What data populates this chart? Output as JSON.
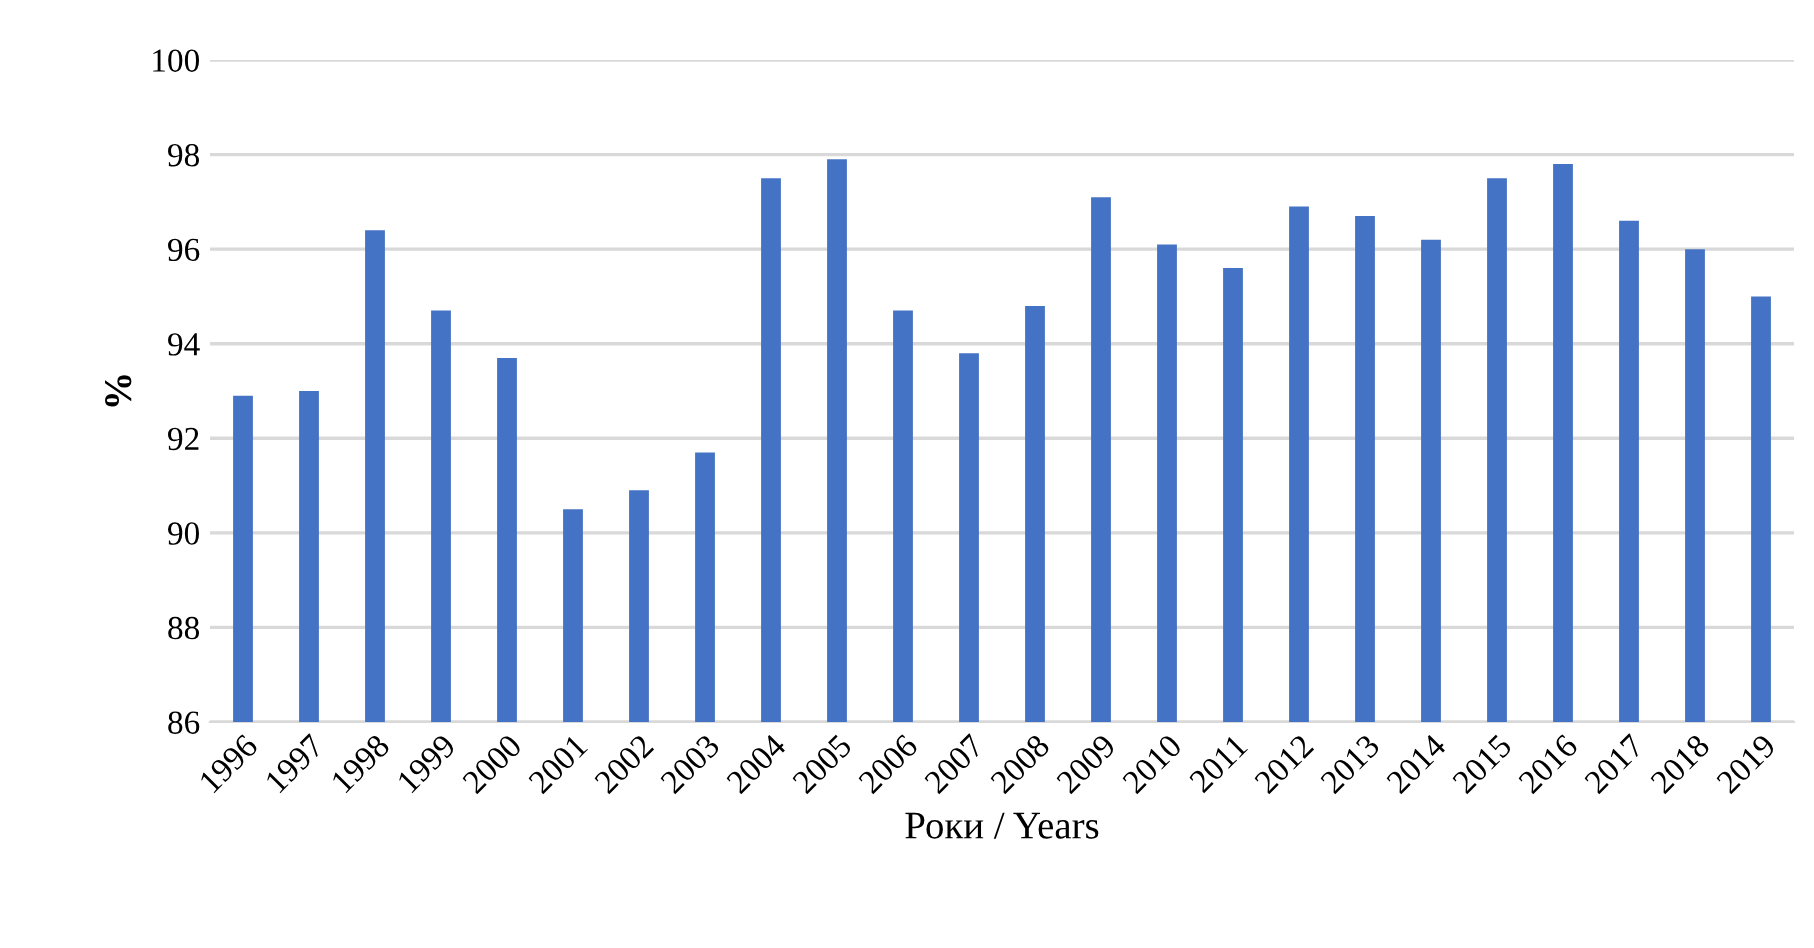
{
  "chart_data": {
    "type": "bar",
    "xlabel": "Роки / Years",
    "ylabel": "%",
    "categories": [
      "1996",
      "1997",
      "1998",
      "1999",
      "2000",
      "2001",
      "2002",
      "2003",
      "2004",
      "2005",
      "2006",
      "2007",
      "2008",
      "2009",
      "2010",
      "2011",
      "2012",
      "2013",
      "2014",
      "2015",
      "2016",
      "2017",
      "2018",
      "2019"
    ],
    "values": [
      92.9,
      93.0,
      96.4,
      94.7,
      93.7,
      90.5,
      90.9,
      91.7,
      97.5,
      97.9,
      94.7,
      93.8,
      94.8,
      97.1,
      96.1,
      95.6,
      96.9,
      96.7,
      96.2,
      97.5,
      97.8,
      96.6,
      96.0,
      95.0
    ],
    "color": "#4472c4",
    "ylim": [
      86,
      100
    ],
    "yticks": [
      86,
      88,
      90,
      92,
      94,
      96,
      98,
      100
    ],
    "grid": "y",
    "legend": false
  }
}
